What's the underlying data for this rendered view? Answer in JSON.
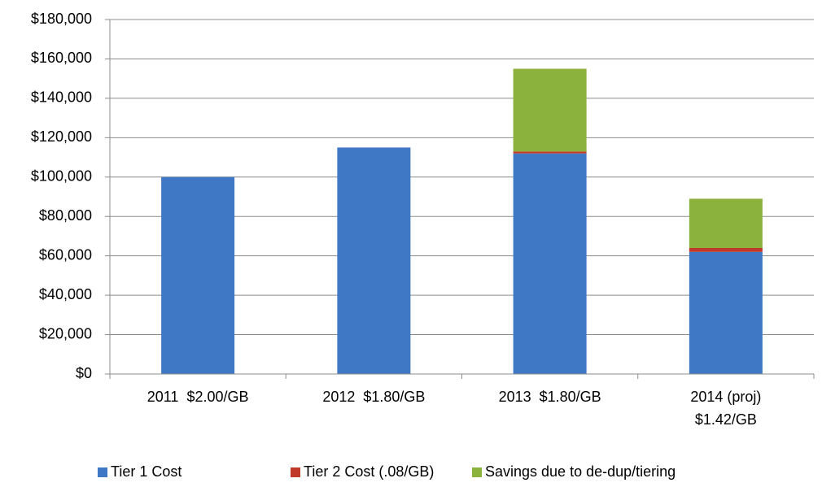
{
  "chart_data": {
    "type": "bar",
    "stacked": true,
    "categories": [
      "2011  $2.00/GB",
      "2012  $1.80/GB",
      "2013  $1.80/GB",
      "2014 (proj) $1.42/GB"
    ],
    "series": [
      {
        "name": "Tier 1 Cost",
        "color": "#3f78c4",
        "values": [
          100000,
          115000,
          112000,
          62000
        ]
      },
      {
        "name": "Tier 2 Cost (.08/GB)",
        "color": "#c0392b",
        "values": [
          0,
          0,
          1000,
          2000
        ]
      },
      {
        "name": "Savings due to de-dup/tiering",
        "color": "#8bb23c",
        "values": [
          0,
          0,
          42000,
          25000
        ]
      }
    ],
    "ylim": [
      0,
      180000
    ],
    "yticks": [
      {
        "value": 0,
        "label": "$0"
      },
      {
        "value": 20000,
        "label": "$20,000"
      },
      {
        "value": 40000,
        "label": "$40,000"
      },
      {
        "value": 60000,
        "label": "$60,000"
      },
      {
        "value": 80000,
        "label": "$80,000"
      },
      {
        "value": 100000,
        "label": "$100,000"
      },
      {
        "value": 120000,
        "label": "$120,000"
      },
      {
        "value": 140000,
        "label": "$140,000"
      },
      {
        "value": 160000,
        "label": "$160,000"
      },
      {
        "value": 180000,
        "label": "$180,000"
      }
    ],
    "grid": true,
    "legend": "bottom"
  }
}
